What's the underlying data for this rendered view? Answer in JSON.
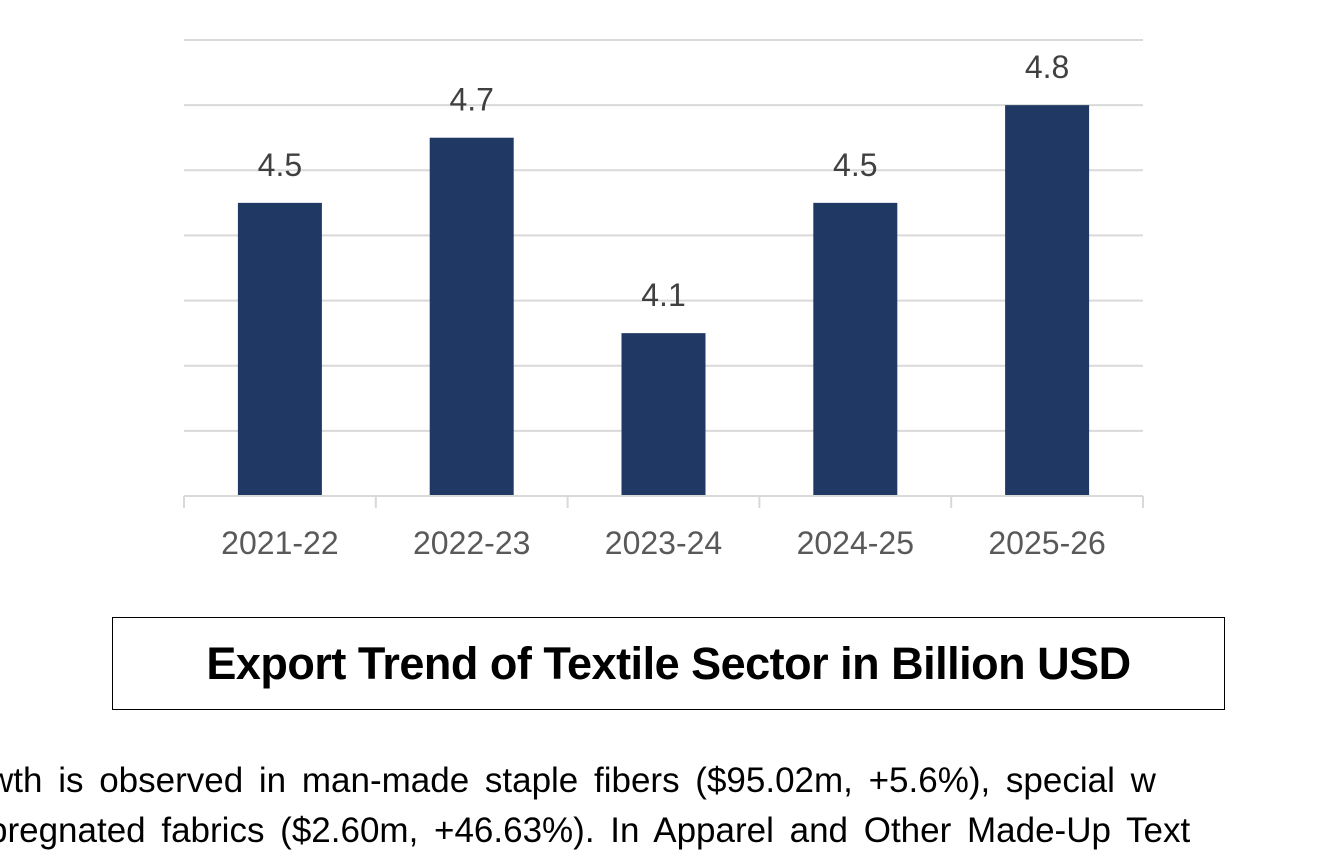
{
  "chart_data": {
    "type": "bar",
    "categories": [
      "2021-22",
      "2022-23",
      "2023-24",
      "2024-25",
      "2025-26"
    ],
    "values": [
      4.5,
      4.7,
      4.1,
      4.5,
      4.8
    ],
    "data_labels": [
      "4.5",
      "4.7",
      "4.1",
      "4.5",
      "4.8"
    ],
    "title": "",
    "xlabel": "",
    "ylabel": "",
    "ylim": [
      3.6,
      5.0
    ],
    "grid": true,
    "bar_color": "#203864"
  },
  "caption": {
    "text": "Export Trend of Textile Sector in Billion USD"
  },
  "body": {
    "line1": "wth is observed in man-made staple fibers ($95.02m, +5.6%), special w",
    "line2": "pregnated fabrics ($2.60m, +46.63%). In Apparel and Other Made-Up Text"
  }
}
